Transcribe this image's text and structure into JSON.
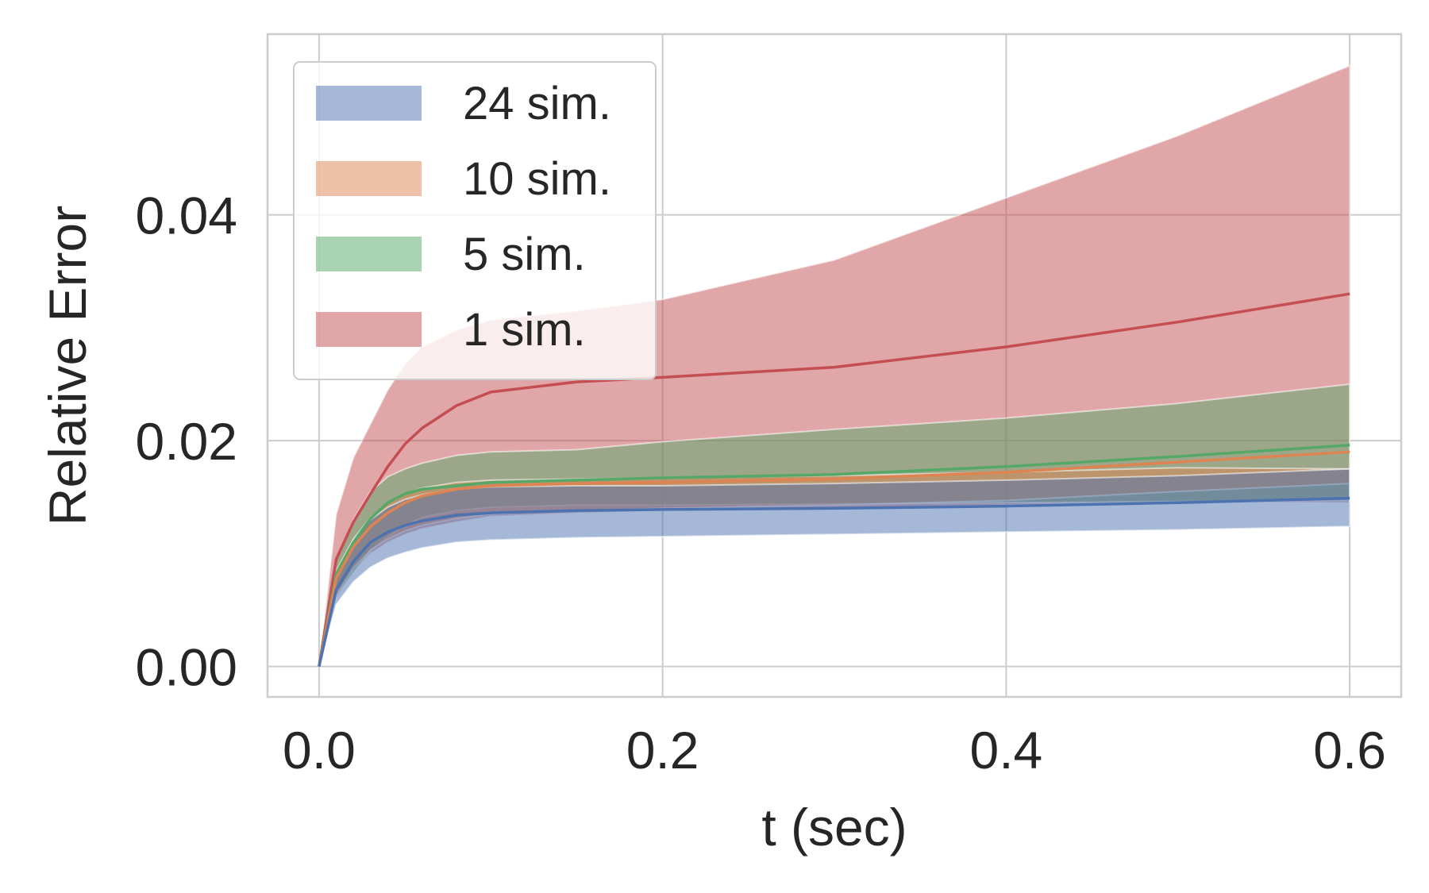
{
  "chart_data": {
    "type": "area",
    "xlabel": "t (sec)",
    "ylabel": "Relative Error",
    "xlim": [
      -0.03,
      0.63
    ],
    "ylim": [
      -0.0027,
      0.056
    ],
    "xticks": [
      0.0,
      0.2,
      0.4,
      0.6
    ],
    "xtick_labels": [
      "0.0",
      "0.2",
      "0.4",
      "0.6"
    ],
    "yticks": [
      0.0,
      0.02,
      0.04
    ],
    "ytick_labels": [
      "0.00",
      "0.02",
      "0.04"
    ],
    "grid": true,
    "legend_position": "upper-left",
    "x": [
      0.0,
      0.01,
      0.02,
      0.03,
      0.04,
      0.05,
      0.06,
      0.08,
      0.1,
      0.15,
      0.2,
      0.3,
      0.4,
      0.5,
      0.6
    ],
    "series": [
      {
        "name": "1 sim.",
        "color": "#c44e52",
        "mean": [
          0.0,
          0.0095,
          0.0128,
          0.0153,
          0.0177,
          0.0197,
          0.0211,
          0.0231,
          0.0243,
          0.0252,
          0.0256,
          0.0265,
          0.0283,
          0.0305,
          0.033
        ],
        "lower": [
          0.0,
          0.006,
          0.0085,
          0.01,
          0.011,
          0.0117,
          0.0122,
          0.0128,
          0.0133,
          0.0136,
          0.0138,
          0.014,
          0.0143,
          0.0146,
          0.0145
        ],
        "upper": [
          0.0,
          0.0135,
          0.0185,
          0.0215,
          0.0245,
          0.0268,
          0.0283,
          0.0298,
          0.0307,
          0.0315,
          0.0325,
          0.036,
          0.0415,
          0.047,
          0.0532
        ]
      },
      {
        "name": "5 sim.",
        "color": "#55a868",
        "mean": [
          0.0,
          0.0082,
          0.011,
          0.0131,
          0.0145,
          0.0153,
          0.0157,
          0.016,
          0.0163,
          0.0165,
          0.0167,
          0.017,
          0.0177,
          0.0186,
          0.0196
        ],
        "lower": [
          0.0,
          0.0062,
          0.0083,
          0.0103,
          0.0115,
          0.0125,
          0.0132,
          0.0138,
          0.0141,
          0.0143,
          0.0143,
          0.0144,
          0.0145,
          0.0146,
          0.0147
        ],
        "upper": [
          0.0,
          0.0095,
          0.013,
          0.0155,
          0.0168,
          0.0175,
          0.018,
          0.0187,
          0.019,
          0.0192,
          0.0199,
          0.021,
          0.022,
          0.0233,
          0.025
        ]
      },
      {
        "name": "10 sim.",
        "color": "#dd8452",
        "mean": [
          0.0,
          0.0078,
          0.0106,
          0.0124,
          0.0136,
          0.0145,
          0.0151,
          0.0157,
          0.016,
          0.0162,
          0.0163,
          0.0166,
          0.0172,
          0.0181,
          0.019
        ],
        "lower": [
          0.0,
          0.0063,
          0.0087,
          0.0103,
          0.0113,
          0.012,
          0.0125,
          0.0131,
          0.0135,
          0.0138,
          0.014,
          0.0143,
          0.0147,
          0.0155,
          0.0162
        ],
        "upper": [
          0.0,
          0.0085,
          0.0113,
          0.0132,
          0.0145,
          0.0153,
          0.0158,
          0.0163,
          0.0165,
          0.0166,
          0.0167,
          0.0169,
          0.0172,
          0.0176,
          0.0175
        ]
      },
      {
        "name": "24 sim.",
        "color": "#4c72b0",
        "mean": [
          0.0,
          0.0068,
          0.0093,
          0.011,
          0.0119,
          0.0125,
          0.0129,
          0.0134,
          0.0136,
          0.0138,
          0.0139,
          0.014,
          0.0142,
          0.0145,
          0.0149
        ],
        "lower": [
          0.0,
          0.0055,
          0.0075,
          0.0088,
          0.0096,
          0.0101,
          0.0105,
          0.011,
          0.0112,
          0.0114,
          0.0115,
          0.0117,
          0.0119,
          0.0121,
          0.0124
        ],
        "upper": [
          0.0,
          0.0082,
          0.0112,
          0.013,
          0.0141,
          0.0148,
          0.0152,
          0.0157,
          0.0159,
          0.016,
          0.016,
          0.0162,
          0.0165,
          0.0169,
          0.0175
        ]
      }
    ],
    "legend_order": [
      "24 sim.",
      "10 sim.",
      "5 sim.",
      "1 sim."
    ]
  }
}
